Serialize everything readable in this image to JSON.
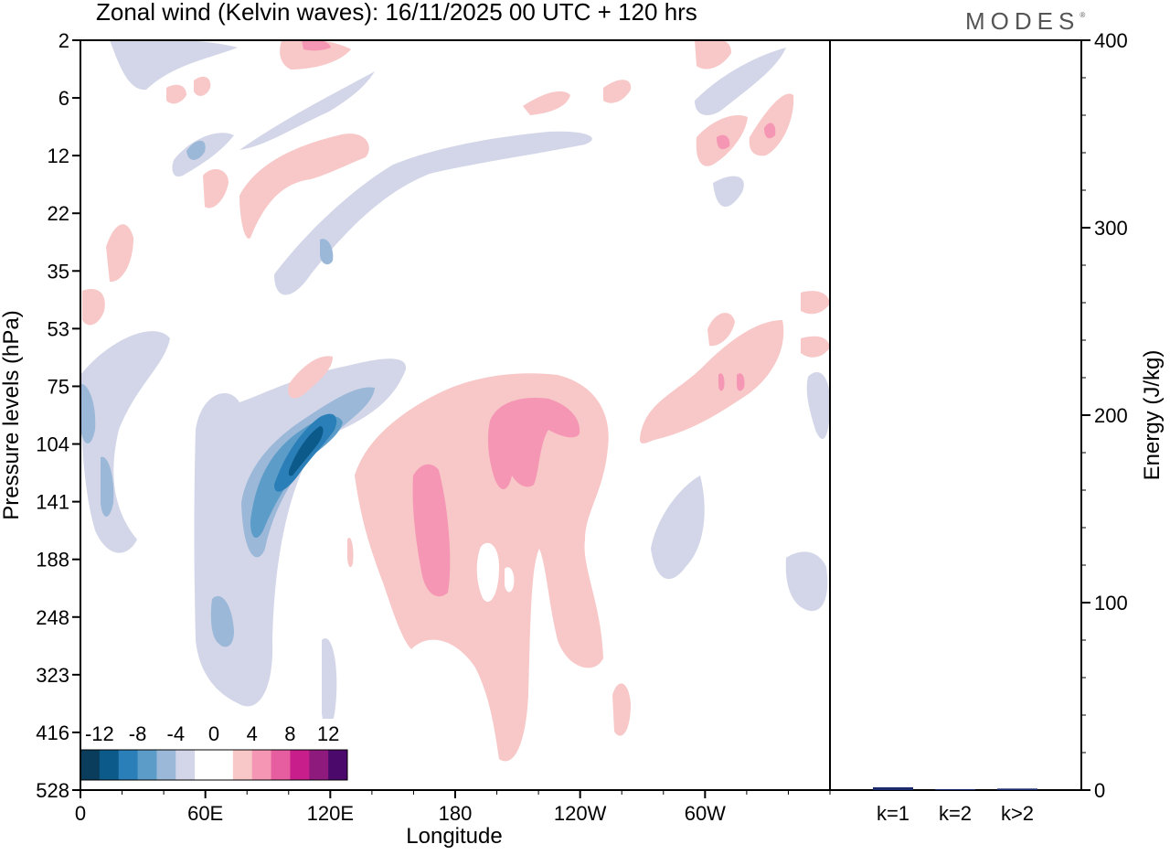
{
  "title": "Zonal wind (Kelvin waves):  16/11/2025  00 UTC  + 120 hrs",
  "brand": "MODES",
  "brand_mark": "®",
  "colors": {
    "neg12": "#0a3d5c",
    "neg10": "#0b5a8a",
    "neg8": "#2a7fb8",
    "neg6": "#5b9cc8",
    "neg4": "#9bb8d8",
    "neg2": "#d3d6e8",
    "zero": "#ffffff",
    "pos2": "#f8c8c8",
    "pos4": "#f597b4",
    "pos6": "#e75ea0",
    "pos8": "#c81e8c",
    "pos10": "#8f1a7e",
    "pos12": "#4b0a6b",
    "bar": "#1a2a6c"
  },
  "chart_data": [
    {
      "type": "heatmap",
      "title": "Zonal wind (Kelvin waves):  16/11/2025  00 UTC  + 120 hrs",
      "xlabel": "Longitude",
      "ylabel": "Pressure levels (hPa)",
      "x_ticks": [
        "0",
        "60E",
        "120E",
        "180",
        "120W",
        "60W"
      ],
      "x_tick_degrees": [
        0,
        60,
        120,
        180,
        240,
        300
      ],
      "xlim": [
        0,
        360
      ],
      "y_ticks": [
        "2",
        "6",
        "12",
        "22",
        "35",
        "53",
        "75",
        "104",
        "141",
        "188",
        "248",
        "323",
        "416",
        "528"
      ],
      "colorbar": {
        "labels": [
          "-12",
          "-8",
          "-4",
          "0",
          "4",
          "8",
          "12"
        ],
        "levels": [
          -12,
          -10,
          -8,
          -6,
          -4,
          -2,
          0,
          2,
          4,
          6,
          8,
          10,
          12
        ],
        "bin_colors": [
          "#0a3d5c",
          "#0b5a8a",
          "#2a7fb8",
          "#5b9cc8",
          "#9bb8d8",
          "#d3d6e8",
          "#ffffff",
          "#ffffff",
          "#f8c8c8",
          "#f597b4",
          "#e75ea0",
          "#c81e8c",
          "#8f1a7e",
          "#4b0a6b"
        ]
      },
      "features": [
        {
          "lon": 110,
          "level": 104,
          "value": -10
        },
        {
          "lon": 95,
          "level": 141,
          "value": -8
        },
        {
          "lon": 70,
          "level": 248,
          "value": -4
        },
        {
          "lon": 5,
          "level": 85,
          "value": -4
        },
        {
          "lon": 165,
          "level": 170,
          "value": 4
        },
        {
          "lon": 200,
          "level": 104,
          "value": 4
        },
        {
          "lon": 230,
          "level": 100,
          "value": 4
        },
        {
          "lon": 290,
          "level": 75,
          "value": 2
        }
      ]
    },
    {
      "type": "bar",
      "xlabel": "",
      "ylabel": "Energy (J/kg)",
      "categories": [
        "k=1",
        "k=2",
        "k>2"
      ],
      "values": [
        1.5,
        0.5,
        0.8
      ],
      "ylim": [
        0,
        400
      ],
      "y_ticks": [
        "0",
        "100",
        "200",
        "300",
        "400"
      ]
    }
  ]
}
